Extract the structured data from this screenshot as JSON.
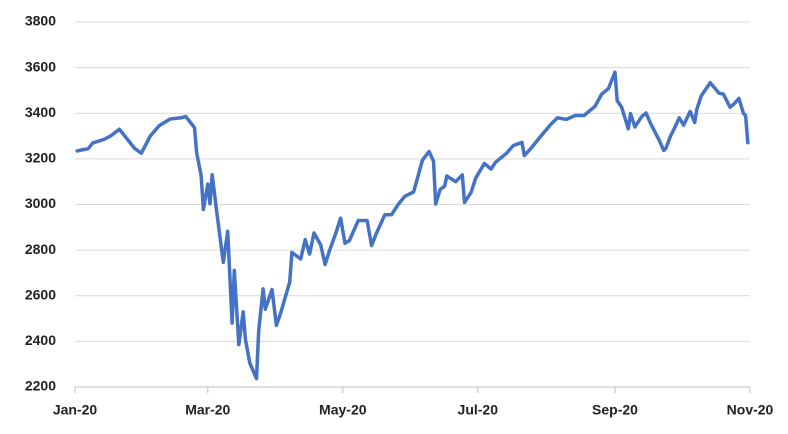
{
  "chart_data": {
    "type": "line",
    "color": "#4472c4",
    "grid": true,
    "x": [
      1,
      6,
      8,
      13,
      16,
      20,
      27,
      30,
      34,
      38,
      43,
      48,
      50,
      54,
      55,
      57,
      58,
      60,
      61,
      62,
      64,
      67,
      69,
      71,
      72,
      74,
      76,
      77,
      79,
      82,
      83,
      85,
      86,
      89,
      91,
      93,
      97,
      98,
      102,
      104,
      106,
      108,
      111,
      113,
      115,
      118,
      120,
      122,
      124,
      128,
      132,
      134,
      136,
      140,
      143,
      146,
      149,
      153,
      157,
      160,
      162,
      163,
      165,
      167,
      168,
      172,
      175,
      176,
      179,
      181,
      185,
      188,
      190,
      195,
      198,
      202,
      203,
      206,
      210,
      215,
      218,
      222,
      226,
      230,
      235,
      238,
      241,
      244,
      245,
      247,
      250,
      251,
      253,
      256,
      258,
      260,
      262,
      264,
      266,
      267,
      269,
      271,
      273,
      275,
      278,
      280,
      281,
      283,
      287,
      289,
      291,
      293,
      296,
      298,
      300,
      302,
      303,
      304
    ],
    "values": [
      3235,
      3245,
      3270,
      3285,
      3300,
      3330,
      3245,
      3225,
      3300,
      3345,
      3375,
      3380,
      3386,
      3337,
      3225,
      3128,
      2978,
      3090,
      3003,
      3130,
      2972,
      2746,
      2882,
      2480,
      2711,
      2386,
      2529,
      2409,
      2305,
      2237,
      2447,
      2630,
      2541,
      2627,
      2470,
      2526,
      2660,
      2790,
      2761,
      2846,
      2783,
      2875,
      2823,
      2737,
      2798,
      2878,
      2940,
      2830,
      2842,
      2930,
      2930,
      2820,
      2870,
      2955,
      2955,
      3000,
      3036,
      3055,
      3195,
      3232,
      3190,
      3002,
      3066,
      3080,
      3125,
      3100,
      3130,
      3009,
      3053,
      3115,
      3180,
      3155,
      3185,
      3225,
      3258,
      3272,
      3215,
      3246,
      3294,
      3351,
      3380,
      3373,
      3390,
      3390,
      3431,
      3484,
      3508,
      3580,
      3455,
      3427,
      3332,
      3399,
      3340,
      3385,
      3401,
      3357,
      3319,
      3281,
      3237,
      3246,
      3298,
      3337,
      3380,
      3348,
      3408,
      3360,
      3419,
      3477,
      3534,
      3511,
      3488,
      3484,
      3426,
      3443,
      3465,
      3400,
      3390,
      3271
    ],
    "xlim": [
      0,
      305
    ],
    "xticks": [
      {
        "value": 0,
        "label": "Jan-20"
      },
      {
        "value": 60,
        "label": "Mar-20"
      },
      {
        "value": 121,
        "label": "May-20"
      },
      {
        "value": 182,
        "label": "Jul-20"
      },
      {
        "value": 244,
        "label": "Sep-20"
      },
      {
        "value": 305,
        "label": "Nov-20"
      }
    ],
    "ylim": [
      2200,
      3800
    ],
    "yticks": [
      2200,
      2400,
      2600,
      2800,
      3000,
      3200,
      3400,
      3600,
      3800
    ]
  }
}
